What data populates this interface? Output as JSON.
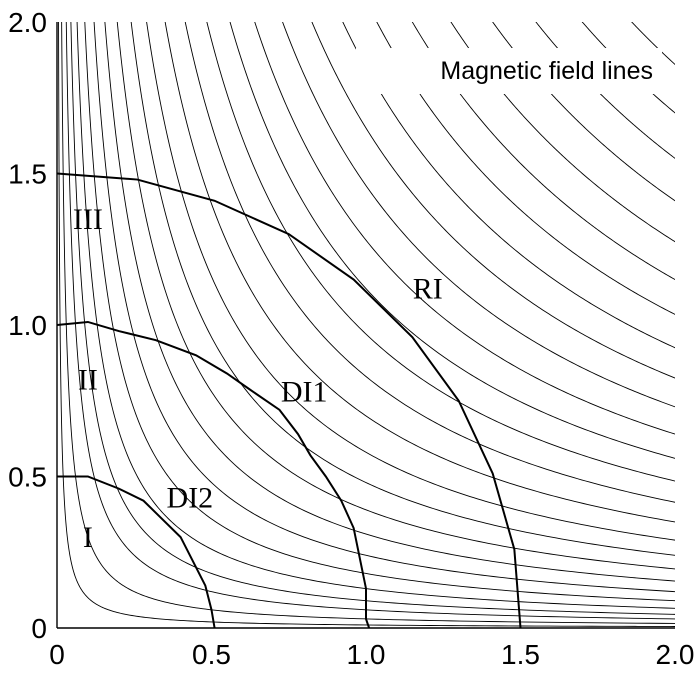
{
  "chart_data": {
    "type": "line",
    "title": "Magnetic field lines",
    "xlabel": "",
    "ylabel": "",
    "xlim": [
      0,
      2
    ],
    "ylim": [
      0,
      2
    ],
    "x_ticks": [
      "0",
      "0.5",
      "1.0",
      "1.5",
      "2.0"
    ],
    "y_ticks": [
      "0",
      "0.5",
      "1.0",
      "1.5",
      "2.0"
    ],
    "grid": false,
    "field_line_constants": [
      0.01,
      0.03,
      0.06,
      0.09,
      0.13,
      0.18,
      0.24,
      0.31,
      0.39,
      0.48,
      0.58,
      0.7,
      0.83,
      0.97,
      1.12,
      1.28,
      1.46,
      1.65,
      1.85,
      2.07,
      2.3,
      2.55,
      2.82,
      3.1,
      3.4,
      3.72
    ],
    "interfaces": [
      {
        "name": "RI",
        "points": [
          [
            0,
            1.5
          ],
          [
            0.26,
            1.48
          ],
          [
            0.51,
            1.41
          ],
          [
            0.75,
            1.3
          ],
          [
            0.96,
            1.15
          ],
          [
            1.15,
            0.96
          ],
          [
            1.3,
            0.75
          ],
          [
            1.41,
            0.51
          ],
          [
            1.48,
            0.26
          ],
          [
            1.5,
            0
          ]
        ]
      },
      {
        "name": "DI1",
        "points": [
          [
            0,
            1.0
          ],
          [
            0.1,
            1.01
          ],
          [
            0.2,
            0.98
          ],
          [
            0.32,
            0.95
          ],
          [
            0.45,
            0.9
          ],
          [
            0.55,
            0.84
          ],
          [
            0.62,
            0.79
          ],
          [
            0.72,
            0.72
          ],
          [
            0.78,
            0.64
          ],
          [
            0.82,
            0.57
          ],
          [
            0.87,
            0.5
          ],
          [
            0.92,
            0.42
          ],
          [
            0.96,
            0.33
          ],
          [
            0.98,
            0.23
          ],
          [
            1.0,
            0.13
          ],
          [
            1.0,
            0.03
          ],
          [
            1.01,
            0
          ]
        ]
      },
      {
        "name": "DI2",
        "points": [
          [
            0,
            0.5
          ],
          [
            0.1,
            0.5
          ],
          [
            0.2,
            0.46
          ],
          [
            0.28,
            0.42
          ],
          [
            0.34,
            0.36
          ],
          [
            0.4,
            0.3
          ],
          [
            0.44,
            0.22
          ],
          [
            0.48,
            0.14
          ],
          [
            0.5,
            0.06
          ],
          [
            0.51,
            0
          ]
        ]
      }
    ],
    "region_labels": [
      {
        "text": "III",
        "x": 0.1,
        "y": 1.35
      },
      {
        "text": "II",
        "x": 0.1,
        "y": 0.82
      },
      {
        "text": "I",
        "x": 0.1,
        "y": 0.3
      },
      {
        "text": "RI",
        "x": 1.2,
        "y": 1.12
      },
      {
        "text": "DI1",
        "x": 0.8,
        "y": 0.78
      },
      {
        "text": "DI2",
        "x": 0.43,
        "y": 0.43
      }
    ]
  }
}
